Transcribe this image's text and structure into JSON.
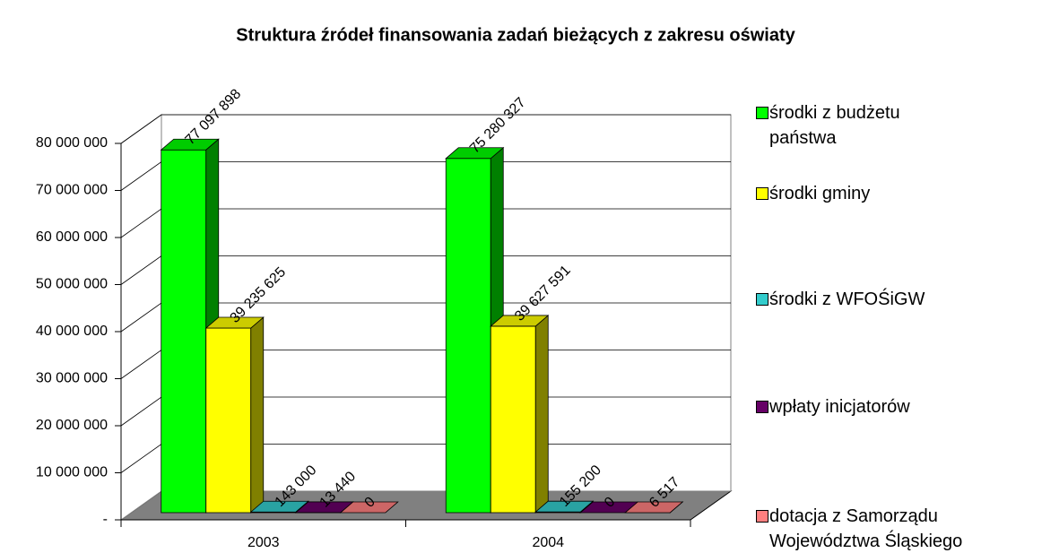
{
  "chart_data": {
    "type": "bar3d",
    "title": "Struktura źródeł finansowania zadań bieżących z zakresu oświaty",
    "categories": [
      "2003",
      "2004"
    ],
    "series": [
      {
        "name": "środki z budżetu państwa",
        "color": "#00ff00",
        "values": [
          77097898,
          75280327
        ],
        "value_labels": [
          "77 097 898",
          "75 280 327"
        ]
      },
      {
        "name": "środki gminy",
        "color": "#ffff00",
        "values": [
          39235625,
          39627591
        ],
        "value_labels": [
          "39 235 625",
          "39 627 591"
        ]
      },
      {
        "name": "środki z WFOŚiGW",
        "color": "#33cccc",
        "values": [
          143000,
          155200
        ],
        "value_labels": [
          "143 000",
          "155 200"
        ]
      },
      {
        "name": "wpłaty inicjatorów",
        "color": "#660066",
        "values": [
          13440,
          0
        ],
        "value_labels": [
          "13 440",
          "0"
        ]
      },
      {
        "name": "dotacja z Samorządu Województwa Śląskiego",
        "color": "#ff8080",
        "values": [
          0,
          6517
        ],
        "value_labels": [
          "0",
          "6 517"
        ]
      }
    ],
    "ylim": [
      0,
      80000000
    ],
    "yticks": [
      {
        "value": 0,
        "label": "-"
      },
      {
        "value": 10000000,
        "label": "10 000 000"
      },
      {
        "value": 20000000,
        "label": "20 000 000"
      },
      {
        "value": 30000000,
        "label": "30 000 000"
      },
      {
        "value": 40000000,
        "label": "40 000 000"
      },
      {
        "value": 50000000,
        "label": "50 000 000"
      },
      {
        "value": 60000000,
        "label": "60 000 000"
      },
      {
        "value": 70000000,
        "label": "70 000 000"
      },
      {
        "value": 80000000,
        "label": "80 000 000"
      }
    ],
    "grid": true,
    "legend": "right"
  }
}
